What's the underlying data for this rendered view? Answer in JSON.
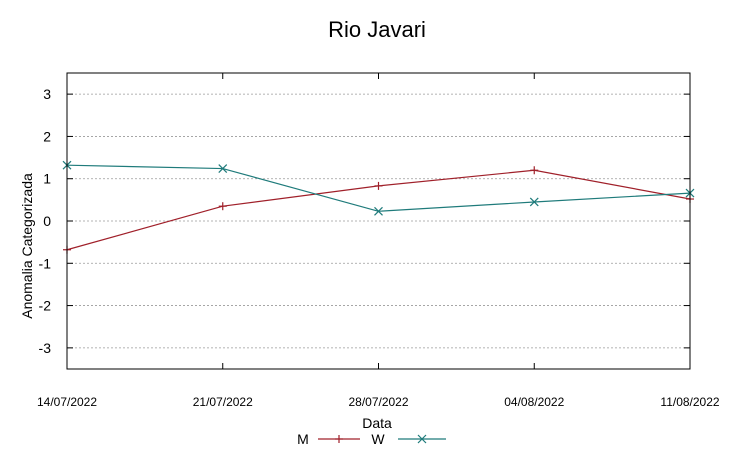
{
  "chart_data": {
    "type": "line",
    "title": "Rio Javari",
    "xlabel": "Data",
    "ylabel": "Anomalia Categorizada",
    "categories": [
      "14/07/2022",
      "21/07/2022",
      "28/07/2022",
      "04/08/2022",
      "11/08/2022"
    ],
    "ylim": [
      -3.5,
      3.5
    ],
    "yticks": [
      "3",
      "2",
      "1",
      "0",
      "-1",
      "-2",
      "-3"
    ],
    "grid": true,
    "legend_position": "bottom",
    "series": [
      {
        "name": "M",
        "color": "#a0202a",
        "marker": "plus",
        "values": [
          -0.68,
          0.35,
          0.83,
          1.2,
          0.52
        ]
      },
      {
        "name": "W",
        "color": "#1f7b7b",
        "marker": "cross",
        "values": [
          1.32,
          1.24,
          0.23,
          0.45,
          0.66
        ]
      }
    ]
  }
}
